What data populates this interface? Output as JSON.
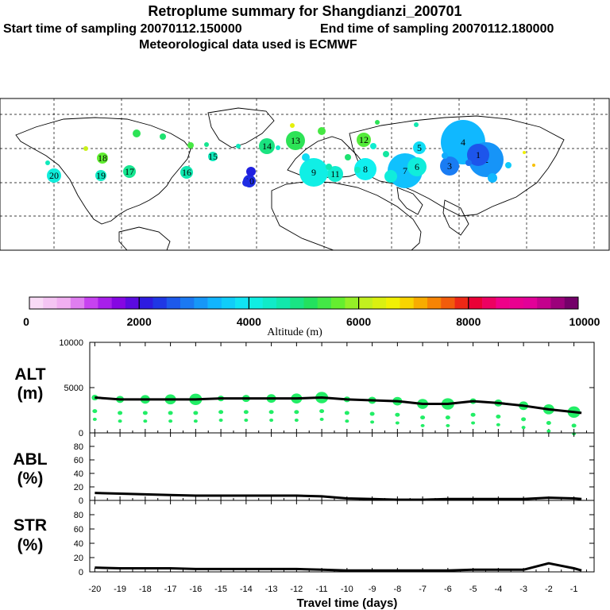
{
  "header": {
    "title": "Retroplume summary for Shangdianzi_200701",
    "start_label": "Start time of sampling 20070112.150000",
    "end_label": "End time of sampling 20070112.180000",
    "met_label": "Meteorological data used is ECMWF"
  },
  "colors": {
    "line": "#000000",
    "dots": "#22ee66",
    "border": "#000000"
  },
  "map": {
    "plume_labels": [
      {
        "text": "20",
        "alt": 4200
      },
      {
        "text": "19",
        "alt": 4400
      },
      {
        "text": "18",
        "alt": 5600
      },
      {
        "text": "17",
        "alt": 4800
      },
      {
        "text": "16",
        "alt": 4600
      },
      {
        "text": "15",
        "alt": 4500
      },
      {
        "text": "14",
        "alt": 4900
      },
      {
        "text": "13",
        "alt": 5200
      },
      {
        "text": "12",
        "alt": 5500
      },
      {
        "text": "11",
        "alt": 4300
      },
      {
        "text": "10",
        "alt": 2300
      },
      {
        "text": "9",
        "alt": 4100
      },
      {
        "text": "8",
        "alt": 4000
      },
      {
        "text": "7",
        "alt": 3500
      },
      {
        "text": "6",
        "alt": 4200
      },
      {
        "text": "5",
        "alt": 3800
      },
      {
        "text": "4",
        "alt": 3400
      },
      {
        "text": "3",
        "alt": 2900
      },
      {
        "text": "2",
        "alt": 3100
      },
      {
        "text": "1",
        "alt": 2600
      }
    ]
  },
  "colorbar": {
    "ticks": [
      "0",
      "2000",
      "4000",
      "6000",
      "8000",
      "10000"
    ],
    "label": "Altitude (m)",
    "range": [
      0,
      10000
    ]
  },
  "chart_data": [
    {
      "type": "line",
      "panel": "ALT",
      "title": "ALT",
      "units": "(m)",
      "ylim": [
        0,
        10000
      ],
      "yticks": [
        "10000",
        "5000",
        "0"
      ],
      "ytick_values": [
        10000,
        5000,
        0
      ],
      "x": [
        -20,
        -19,
        -18,
        -17,
        -16,
        -15,
        -14,
        -13,
        -12,
        -11,
        -10,
        -9,
        -8,
        -7,
        -6,
        -5,
        -4,
        -3,
        -2,
        -1,
        -0.7
      ],
      "values": [
        3900,
        3700,
        3700,
        3700,
        3700,
        3800,
        3800,
        3800,
        3800,
        3900,
        3700,
        3600,
        3500,
        3200,
        3200,
        3500,
        3300,
        3000,
        2600,
        2300,
        2200
      ]
    },
    {
      "type": "line",
      "panel": "ABL",
      "title": "ABL",
      "units": "(%)",
      "ylim": [
        0,
        100
      ],
      "yticks": [
        "80",
        "60",
        "40",
        "20",
        "0"
      ],
      "ytick_values": [
        80,
        60,
        40,
        20,
        0
      ],
      "x": [
        -20,
        -19,
        -18,
        -17,
        -16,
        -15,
        -14,
        -13,
        -12,
        -11,
        -10,
        -9,
        -8,
        -7,
        -6,
        -5,
        -4,
        -3,
        -2,
        -1,
        -0.7
      ],
      "values": [
        11,
        10,
        9,
        8,
        7,
        7,
        7,
        7,
        7,
        6,
        3,
        2,
        1,
        1,
        2,
        2,
        2,
        2,
        4,
        3,
        2
      ]
    },
    {
      "type": "line",
      "panel": "STR",
      "title": "STR",
      "units": "(%)",
      "ylim": [
        0,
        100
      ],
      "yticks": [
        "80",
        "60",
        "40",
        "20",
        "0"
      ],
      "ytick_values": [
        80,
        60,
        40,
        20,
        0
      ],
      "x": [
        -20,
        -19,
        -18,
        -17,
        -16,
        -15,
        -14,
        -13,
        -12,
        -11,
        -10,
        -9,
        -8,
        -7,
        -6,
        -5,
        -4,
        -3,
        -2,
        -1,
        -0.7
      ],
      "values": [
        6,
        5,
        5,
        5,
        4,
        4,
        4,
        4,
        4,
        3,
        2,
        2,
        2,
        2,
        2,
        3,
        3,
        3,
        12,
        5,
        2
      ]
    }
  ],
  "xaxis": {
    "label": "Travel time (days)",
    "ticks": [
      "-20",
      "-19",
      "-18",
      "-17",
      "-16",
      "-15",
      "-14",
      "-13",
      "-12",
      "-11",
      "-10",
      "-9",
      "-8",
      "-7",
      "-6",
      "-5",
      "-4",
      "-3",
      "-2",
      "-1"
    ],
    "tick_values": [
      -20,
      -19,
      -18,
      -17,
      -16,
      -15,
      -14,
      -13,
      -12,
      -11,
      -10,
      -9,
      -8,
      -7,
      -6,
      -5,
      -4,
      -3,
      -2,
      -1
    ],
    "xlim": [
      -20.2,
      -0.2
    ]
  }
}
